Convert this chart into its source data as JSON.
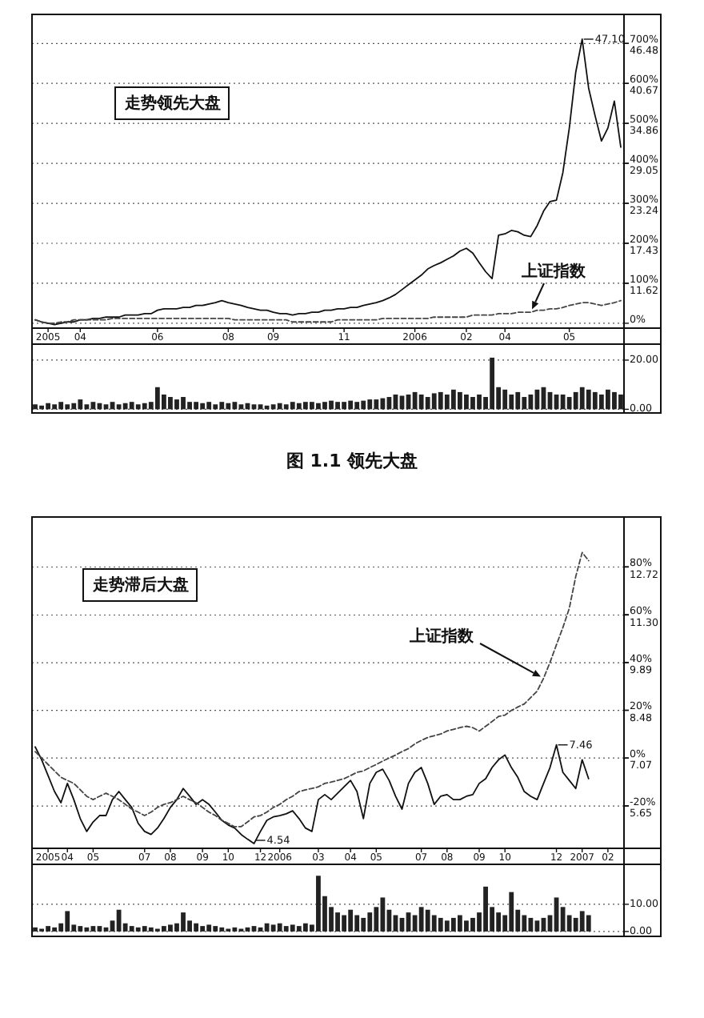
{
  "chart_data": [
    {
      "type": "line",
      "categories": [
        null,
        null,
        "2005",
        null,
        null,
        null,
        null,
        "04",
        null,
        null,
        null,
        null,
        null,
        null,
        null,
        null,
        null,
        null,
        null,
        "06",
        null,
        null,
        null,
        null,
        null,
        null,
        null,
        null,
        null,
        null,
        "08",
        null,
        null,
        null,
        null,
        null,
        null,
        "09",
        null,
        null,
        null,
        null,
        null,
        null,
        null,
        null,
        null,
        null,
        "11",
        null,
        null,
        null,
        null,
        null,
        null,
        null,
        null,
        null,
        null,
        "2006",
        null,
        null,
        null,
        null,
        null,
        null,
        null,
        "02",
        null,
        null,
        null,
        null,
        null,
        "04",
        null,
        null,
        null,
        null,
        null,
        null,
        null,
        null,
        null,
        "05",
        null,
        null,
        null,
        null,
        null,
        null,
        null,
        null
      ],
      "series": [
        {
          "color": "#111111",
          "values": [
            6.3,
            6.0,
            5.8,
            5.6,
            5.8,
            6.0,
            6.0,
            6.3,
            6.3,
            6.5,
            6.5,
            6.7,
            6.7,
            6.7,
            7.0,
            7.0,
            7.0,
            7.2,
            7.2,
            7.7,
            7.9,
            7.9,
            7.9,
            8.1,
            8.1,
            8.4,
            8.4,
            8.6,
            8.8,
            9.1,
            8.8,
            8.6,
            8.4,
            8.1,
            7.9,
            7.7,
            7.7,
            7.4,
            7.2,
            7.2,
            7.0,
            7.2,
            7.2,
            7.4,
            7.4,
            7.7,
            7.7,
            7.9,
            7.9,
            8.1,
            8.1,
            8.4,
            8.6,
            8.8,
            9.1,
            9.5,
            10.0,
            10.7,
            11.4,
            12.1,
            12.8,
            13.7,
            14.2,
            14.6,
            15.1,
            15.6,
            16.3,
            16.7,
            16.0,
            14.6,
            13.3,
            12.3,
            18.6,
            18.8,
            19.3,
            19.1,
            18.6,
            18.4,
            20.0,
            22.1,
            23.5,
            23.7,
            27.7,
            34.2,
            42.3,
            47.1,
            40.0,
            36.0,
            32.3,
            34.2,
            38.1,
            31.4
          ]
        },
        {
          "name": "上证指数",
          "color": "#444444",
          "line_style": "dashed",
          "values": [
            6.3,
            6.0,
            5.8,
            5.8,
            6.0,
            6.0,
            6.3,
            6.3,
            6.3,
            6.3,
            6.3,
            6.3,
            6.5,
            6.5,
            6.5,
            6.5,
            6.5,
            6.5,
            6.5,
            6.5,
            6.5,
            6.5,
            6.5,
            6.5,
            6.5,
            6.5,
            6.5,
            6.5,
            6.5,
            6.5,
            6.5,
            6.3,
            6.3,
            6.3,
            6.3,
            6.3,
            6.3,
            6.3,
            6.3,
            6.3,
            6.0,
            6.0,
            6.0,
            6.0,
            6.0,
            6.0,
            6.0,
            6.3,
            6.3,
            6.3,
            6.3,
            6.3,
            6.3,
            6.3,
            6.5,
            6.5,
            6.5,
            6.5,
            6.5,
            6.5,
            6.5,
            6.5,
            6.7,
            6.7,
            6.7,
            6.7,
            6.7,
            6.7,
            7.0,
            7.0,
            7.0,
            7.0,
            7.2,
            7.2,
            7.2,
            7.4,
            7.4,
            7.4,
            7.7,
            7.7,
            7.9,
            7.9,
            8.1,
            8.4,
            8.6,
            8.8,
            8.8,
            8.6,
            8.4,
            8.6,
            8.8,
            9.1
          ]
        }
      ],
      "ylim": [
        5.1,
        50.7
      ],
      "yticks": [
        11.62,
        17.43,
        23.24,
        29.05,
        34.86,
        40.67,
        46.48
      ],
      "y2lim": [
        -12.2,
        772.6
      ],
      "y2ticks": [
        {
          "value": 0,
          "label": "0%"
        },
        {
          "value": 100,
          "label": "100%"
        },
        {
          "value": 200,
          "label": "200%"
        },
        {
          "value": 300,
          "label": "300%"
        },
        {
          "value": 400,
          "label": "400%"
        },
        {
          "value": 500,
          "label": "500%"
        },
        {
          "value": 600,
          "label": "600%"
        },
        {
          "value": 700,
          "label": "700%"
        }
      ],
      "grid": "y",
      "annotations": [
        "走势领先大盘",
        "47.10"
      ]
    },
    {
      "type": "bar",
      "categories": [
        null,
        null,
        null,
        null,
        null,
        null,
        null,
        null,
        null,
        null,
        null,
        null,
        null,
        null,
        null,
        null,
        null,
        null,
        null,
        null,
        null,
        null,
        null,
        null,
        null,
        null,
        null,
        null,
        null,
        null,
        null,
        null,
        null,
        null,
        null,
        null,
        null,
        null,
        null,
        null,
        null,
        null,
        null,
        null,
        null,
        null,
        null,
        null,
        null,
        null,
        null,
        null,
        null,
        null,
        null,
        null,
        null,
        null,
        null,
        null,
        null,
        null,
        null,
        null,
        null,
        null,
        null,
        null,
        null,
        null,
        null,
        null,
        null,
        null,
        null,
        null,
        null,
        null,
        null,
        null,
        null,
        null,
        null,
        null,
        null,
        null,
        null,
        null,
        null,
        null,
        null,
        null
      ],
      "values": [
        2,
        1.5,
        2.5,
        2,
        3,
        2,
        2.5,
        4,
        2,
        3,
        2.5,
        2,
        3,
        2,
        2.5,
        3,
        2,
        2.5,
        3,
        9,
        6,
        5,
        4,
        5,
        3,
        3,
        2.5,
        3,
        2,
        3,
        2.5,
        3,
        2,
        2.5,
        2,
        2,
        1.5,
        2,
        2.5,
        2,
        3,
        2.5,
        3,
        3,
        2.5,
        3,
        3.5,
        3,
        3,
        3.5,
        3,
        3.5,
        4,
        4,
        4.5,
        5,
        6,
        5.5,
        6,
        7,
        6,
        5,
        6.5,
        7,
        6,
        8,
        7,
        6,
        5,
        6,
        5,
        21,
        9,
        8,
        6,
        7,
        5,
        6,
        8,
        9,
        7,
        6,
        6,
        5,
        7,
        9,
        8,
        7,
        6,
        8,
        7,
        6
      ],
      "color": "#222222",
      "ylim": [
        -1.5,
        26.5
      ],
      "yticks": [
        {
          "value": 0,
          "label": "0.00"
        },
        {
          "value": 20,
          "label": "20.00"
        }
      ],
      "grid": "y",
      "tick_labels": "y",
      "annotations": [
        "图 1.1 领先大盘"
      ]
    },
    {
      "type": "line",
      "categories": [
        null,
        null,
        "2005",
        null,
        null,
        "04",
        null,
        null,
        null,
        "05",
        null,
        null,
        null,
        null,
        null,
        null,
        null,
        "07",
        null,
        null,
        null,
        "08",
        null,
        null,
        null,
        null,
        "09",
        null,
        null,
        null,
        "10",
        null,
        null,
        null,
        null,
        "12",
        null,
        null,
        "2006",
        null,
        null,
        null,
        null,
        null,
        "03",
        null,
        null,
        null,
        null,
        "04",
        null,
        null,
        null,
        "05",
        null,
        null,
        null,
        null,
        null,
        null,
        "07",
        null,
        null,
        null,
        "08",
        null,
        null,
        null,
        null,
        "09",
        null,
        null,
        null,
        "10",
        null,
        null,
        null,
        null,
        null,
        null,
        null,
        "12",
        null,
        null,
        null,
        "2007",
        null,
        null,
        null,
        "02",
        null,
        null
      ],
      "series": [
        {
          "color": "#111111",
          "values": [
            7.4,
            7.02,
            6.55,
            6.08,
            5.75,
            6.32,
            5.84,
            5.28,
            4.9,
            5.18,
            5.37,
            5.37,
            5.84,
            6.08,
            5.84,
            5.61,
            5.14,
            4.9,
            4.81,
            5.0,
            5.28,
            5.61,
            5.84,
            6.17,
            5.94,
            5.7,
            5.84,
            5.7,
            5.47,
            5.23,
            5.09,
            5.0,
            4.81,
            4.67,
            4.54,
            4.9,
            5.23,
            5.33,
            5.37,
            5.42,
            5.51,
            5.28,
            5.0,
            4.9,
            5.84,
            5.99,
            5.84,
            6.03,
            6.22,
            6.41,
            6.08,
            5.28,
            6.32,
            6.65,
            6.74,
            6.41,
            5.94,
            5.56,
            6.32,
            6.65,
            6.79,
            6.32,
            5.7,
            5.94,
            5.99,
            5.84,
            5.84,
            5.94,
            5.99,
            6.32,
            6.46,
            6.79,
            7.02,
            7.16,
            6.79,
            6.5,
            6.08,
            5.94,
            5.84,
            6.32,
            6.79,
            7.46,
            6.65,
            6.41,
            6.17,
            7.02,
            6.46,
            null,
            null,
            null,
            null,
            null
          ]
        },
        {
          "name": "上证指数",
          "color": "#444444",
          "line_style": "dashed",
          "values": [
            7.26,
            7.07,
            6.88,
            6.69,
            6.5,
            6.41,
            6.32,
            6.13,
            5.94,
            5.84,
            5.94,
            6.03,
            5.94,
            5.84,
            5.7,
            5.56,
            5.47,
            5.37,
            5.47,
            5.61,
            5.7,
            5.75,
            5.84,
            5.94,
            5.84,
            5.75,
            5.61,
            5.47,
            5.37,
            5.23,
            5.14,
            5.04,
            5.04,
            5.18,
            5.33,
            5.37,
            5.47,
            5.61,
            5.7,
            5.84,
            5.94,
            6.08,
            6.13,
            6.17,
            6.22,
            6.32,
            6.36,
            6.41,
            6.46,
            6.55,
            6.65,
            6.69,
            6.79,
            6.88,
            6.98,
            7.07,
            7.16,
            7.26,
            7.35,
            7.49,
            7.59,
            7.68,
            7.73,
            7.78,
            7.87,
            7.92,
            7.97,
            8.01,
            7.97,
            7.87,
            8.01,
            8.15,
            8.3,
            8.34,
            8.48,
            8.58,
            8.67,
            8.86,
            9.05,
            9.43,
            9.9,
            10.42,
            10.93,
            11.5,
            12.44,
            13.15,
            12.91,
            null,
            null,
            null,
            null,
            null
          ]
        }
      ],
      "ylim": [
        4.4,
        14.2
      ],
      "yticks": [
        5.65,
        7.07,
        8.48,
        9.89,
        {
          "value": 11.3,
          "label": "11.30"
        },
        12.72
      ],
      "y2lim": [
        -37.8,
        100.8
      ],
      "y2ticks": [
        {
          "value": -20,
          "label": "-20%"
        },
        {
          "value": 0,
          "label": "0%"
        },
        {
          "value": 20,
          "label": "20%"
        },
        {
          "value": 40,
          "label": "40%"
        },
        {
          "value": 60,
          "label": "60%"
        },
        {
          "value": 80,
          "label": "80%"
        }
      ],
      "grid": "y",
      "annotations": [
        "走势滞后大盘",
        "4.54",
        "7.46"
      ]
    },
    {
      "type": "bar",
      "categories": [
        null,
        null,
        null,
        null,
        null,
        null,
        null,
        null,
        null,
        null,
        null,
        null,
        null,
        null,
        null,
        null,
        null,
        null,
        null,
        null,
        null,
        null,
        null,
        null,
        null,
        null,
        null,
        null,
        null,
        null,
        null,
        null,
        null,
        null,
        null,
        null,
        null,
        null,
        null,
        null,
        null,
        null,
        null,
        null,
        null,
        null,
        null,
        null,
        null,
        null,
        null,
        null,
        null,
        null,
        null,
        null,
        null,
        null,
        null,
        null,
        null,
        null,
        null,
        null,
        null,
        null,
        null,
        null,
        null,
        null,
        null,
        null,
        null,
        null,
        null,
        null,
        null,
        null,
        null,
        null,
        null,
        null,
        null,
        null,
        null,
        null,
        null,
        null,
        null,
        null,
        null,
        null
      ],
      "values": [
        1.5,
        1,
        2,
        1.5,
        3,
        7.5,
        2.5,
        2,
        1.5,
        2,
        2,
        1.5,
        4,
        8,
        3,
        2,
        1.5,
        2,
        1.5,
        1,
        2,
        2.5,
        3,
        7,
        4,
        3,
        2,
        2.5,
        2,
        1.5,
        1,
        1.5,
        1,
        1.5,
        2,
        1.5,
        3,
        2.5,
        3,
        2,
        2.5,
        2,
        3,
        2.5,
        20.5,
        13,
        9,
        7,
        6,
        8,
        6,
        5,
        7,
        9,
        12.5,
        8,
        6,
        5,
        7,
        6,
        9,
        8,
        6,
        5,
        4,
        5,
        6,
        4,
        5,
        7,
        16.5,
        9,
        7,
        6,
        14.5,
        8,
        6,
        5,
        4,
        5,
        6,
        12.5,
        9,
        6,
        5,
        7.5,
        6,
        null,
        null,
        null,
        null,
        null
      ],
      "color": "#222222",
      "ylim": [
        -1.8,
        24.7
      ],
      "yticks": [
        {
          "value": 0,
          "label": "0.00"
        },
        {
          "value": 10,
          "label": "10.00"
        }
      ],
      "grid": "y",
      "tick_labels": "y"
    }
  ]
}
